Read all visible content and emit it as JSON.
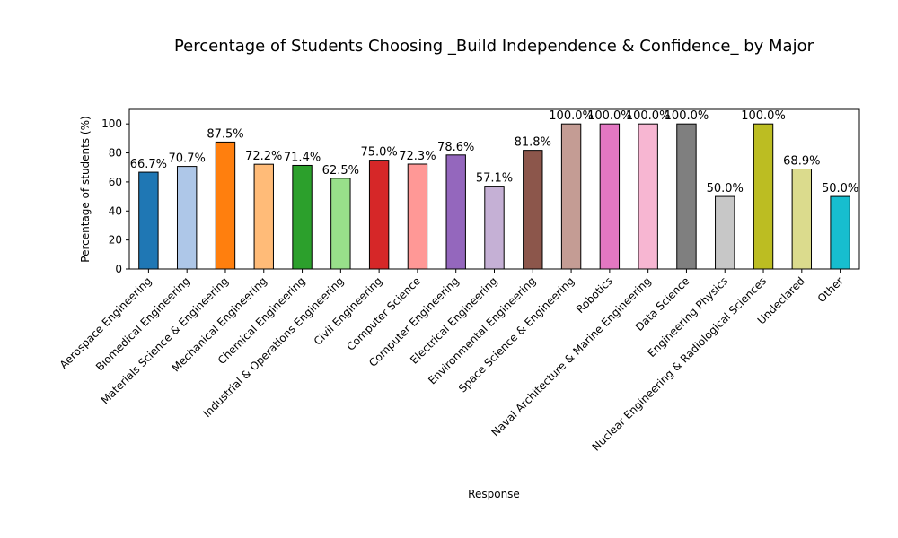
{
  "chart_data": {
    "type": "bar",
    "title": "Percentage of Students Choosing _Build Independence & Confidence_ by Major",
    "xlabel": "Response",
    "ylabel": "Percentage of students (%)",
    "ylim": [
      0,
      110
    ],
    "yticks": [
      0,
      20,
      40,
      60,
      80,
      100
    ],
    "grid": false,
    "categories": [
      "Aerospace Engineering",
      "Biomedical Engineering",
      "Materials Science & Engineering",
      "Mechanical Engineering",
      "Chemical Engineering",
      "Industrial & Operations Engineering",
      "Civil Engineering",
      "Computer Science",
      "Computer Engineering",
      "Electrical Engineering",
      "Environmental Engineering",
      "Space Science & Engineering",
      "Robotics",
      "Naval Architecture & Marine Engineering",
      "Data Science",
      "Engineering Physics",
      "Nuclear Engineering & Radiological Sciences",
      "Undeclared",
      "Other"
    ],
    "values": [
      66.7,
      70.7,
      87.5,
      72.2,
      71.4,
      62.5,
      75.0,
      72.3,
      78.6,
      57.1,
      81.8,
      100.0,
      100.0,
      100.0,
      100.0,
      50.0,
      100.0,
      68.9,
      50.0
    ],
    "data_labels": [
      "66.7%",
      "70.7%",
      "87.5%",
      "72.2%",
      "71.4%",
      "62.5%",
      "75.0%",
      "72.3%",
      "78.6%",
      "57.1%",
      "81.8%",
      "100.0%",
      "100.0%",
      "100.0%",
      "100.0%",
      "50.0%",
      "100.0%",
      "68.9%",
      "50.0%"
    ],
    "colors": [
      "#1f77b4",
      "#aec7e8",
      "#ff7f0e",
      "#ffbb78",
      "#2ca02c",
      "#98df8a",
      "#d62728",
      "#ff9896",
      "#9467bd",
      "#c5b0d5",
      "#8c564b",
      "#c49c94",
      "#e377c2",
      "#f7b6d2",
      "#7f7f7f",
      "#c7c7c7",
      "#bcbd22",
      "#dbdb8d",
      "#17becf"
    ]
  }
}
